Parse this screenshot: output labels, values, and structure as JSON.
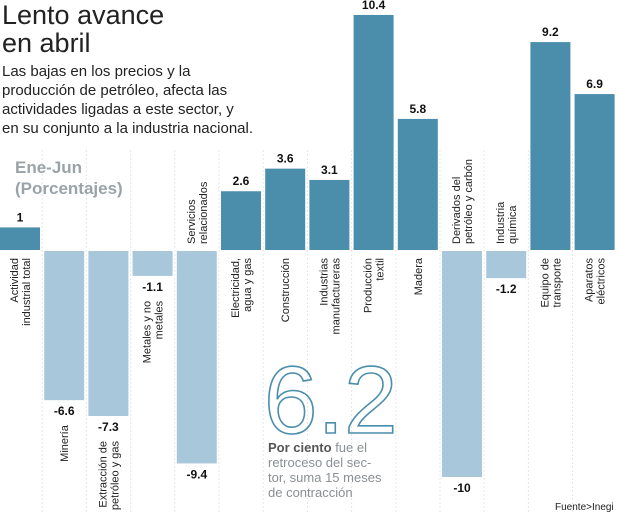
{
  "title_lines": [
    "Lento avance",
    "en abril"
  ],
  "subtitle_lines": [
    "Las bajas en los precios y la",
    "producción de petróleo, afecta las",
    "actividades ligadas a este sector, y",
    "en su conjunto a la industria nacional."
  ],
  "unit_lines": [
    "Ene-Jun",
    "(Porcentajes)"
  ],
  "highlight": {
    "value": "6.2",
    "bold": "Por ciento",
    "lines": [
      " fue el",
      "retroceso del sec-",
      "tor, suma 15 meses",
      "de contracción"
    ]
  },
  "source": "Fuente>Inegi",
  "colors": {
    "positive": "#4b8eab",
    "negative": "#a9c7da"
  },
  "chart_data": {
    "type": "bar",
    "title": "Lento avance en abril",
    "categories": [
      [
        "Actividad",
        "industrial total"
      ],
      [
        "Minería"
      ],
      [
        "Extracción de",
        "petróleo y gas"
      ],
      [
        "Metales y no",
        "metales"
      ],
      [
        "Servicios",
        "relacionados"
      ],
      [
        "Electricidad,",
        "agua y gas"
      ],
      [
        "Construcción"
      ],
      [
        "Industrias",
        "manufactureras"
      ],
      [
        "Producción",
        "textil"
      ],
      [
        "Madera"
      ],
      [
        "Derivados del",
        "petróleo y carbón"
      ],
      [
        "Industria",
        "química"
      ],
      [
        "Equipo de",
        "transporte"
      ],
      [
        "Aparatos",
        "eléctricos"
      ]
    ],
    "values": [
      1,
      -6.6,
      -7.3,
      -1.1,
      -9.4,
      2.6,
      3.6,
      3.1,
      10.4,
      5.8,
      -10,
      -1.2,
      9.2,
      6.9
    ],
    "value_labels": [
      "1",
      "-6.6",
      "-7.3",
      "-1.1",
      "-9.4",
      "2.6",
      "3.6",
      "3.1",
      "10.4",
      "5.8",
      "-10",
      "-1.2",
      "9.2",
      "6.9"
    ],
    "ylabel": "(Porcentajes)",
    "ylim": [
      -10,
      10.4
    ],
    "grid": false
  }
}
